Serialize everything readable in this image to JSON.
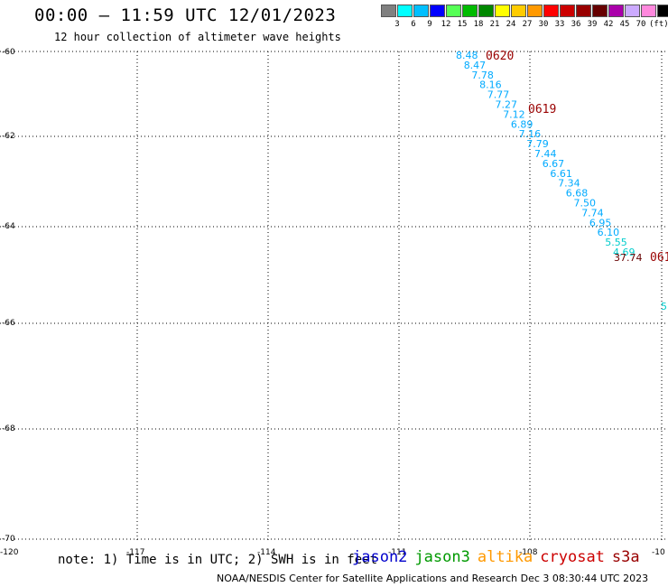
{
  "header": {
    "title": "00:00 – 11:59 UTC 12/01/2023",
    "subtitle": "12 hour collection of altimeter wave heights"
  },
  "legend": {
    "colors": [
      "#808080",
      "#00ffff",
      "#00bfff",
      "#0000ff",
      "#55ff55",
      "#00bb00",
      "#008800",
      "#ffff00",
      "#ffcc00",
      "#ff9900",
      "#ff0000",
      "#cc0000",
      "#990000",
      "#660000",
      "#aa00aa",
      "#ccaaff",
      "#ff88dd",
      "#000000"
    ],
    "labels": [
      "3",
      "6",
      "9",
      "12",
      "15",
      "18",
      "21",
      "24",
      "27",
      "30",
      "33",
      "36",
      "39",
      "42",
      "45",
      "70",
      "(ft)"
    ]
  },
  "axes": {
    "lon_ticks": [
      "-120",
      "-117",
      "-114",
      "-111",
      "-108",
      "-10"
    ],
    "lat_ticks": [
      "-60",
      "-62",
      "-64",
      "-66",
      "-68",
      "-70"
    ]
  },
  "track": {
    "time_labels": [
      "0620",
      "0619",
      "061"
    ],
    "time_color": "#990000",
    "values": [
      "8.48",
      "8.47",
      "7.78",
      "8.16",
      "7.77",
      "7.27",
      "7.12",
      "6.89",
      "7.16",
      "7.79",
      "7.44",
      "6.67",
      "6.61",
      "7.34",
      "6.68",
      "7.50",
      "7.74",
      "6.95",
      "6.10",
      "5.55",
      "4.69"
    ],
    "value_colors": [
      "#00aaff",
      "#00aaff",
      "#00aaff",
      "#00aaff",
      "#00aaff",
      "#00aaff",
      "#00aaff",
      "#00aaff",
      "#00aaff",
      "#00aaff",
      "#00aaff",
      "#00aaff",
      "#00aaff",
      "#00aaff",
      "#00aaff",
      "#00aaff",
      "#00aaff",
      "#00aaff",
      "#00aaff",
      "#00cccc",
      "#00cccc"
    ],
    "outlier_value": "37.74",
    "outlier_color": "#660000",
    "edge_value": "5",
    "edge_color": "#00cccc"
  },
  "footer": {
    "note": "note: 1) Time is in UTC; 2) SWH is in feet",
    "satellites": [
      {
        "name": "jason2",
        "color": "#0000cc"
      },
      {
        "name": "jason3",
        "color": "#009900"
      },
      {
        "name": "altika",
        "color": "#ff9900"
      },
      {
        "name": "cryosat",
        "color": "#cc0000"
      },
      {
        "name": "s3a",
        "color": "#990000"
      }
    ],
    "credit": "NOAA/NESDIS Center for Satellite Applications and Research   Dec  3 08:30:44 UTC 2023"
  }
}
